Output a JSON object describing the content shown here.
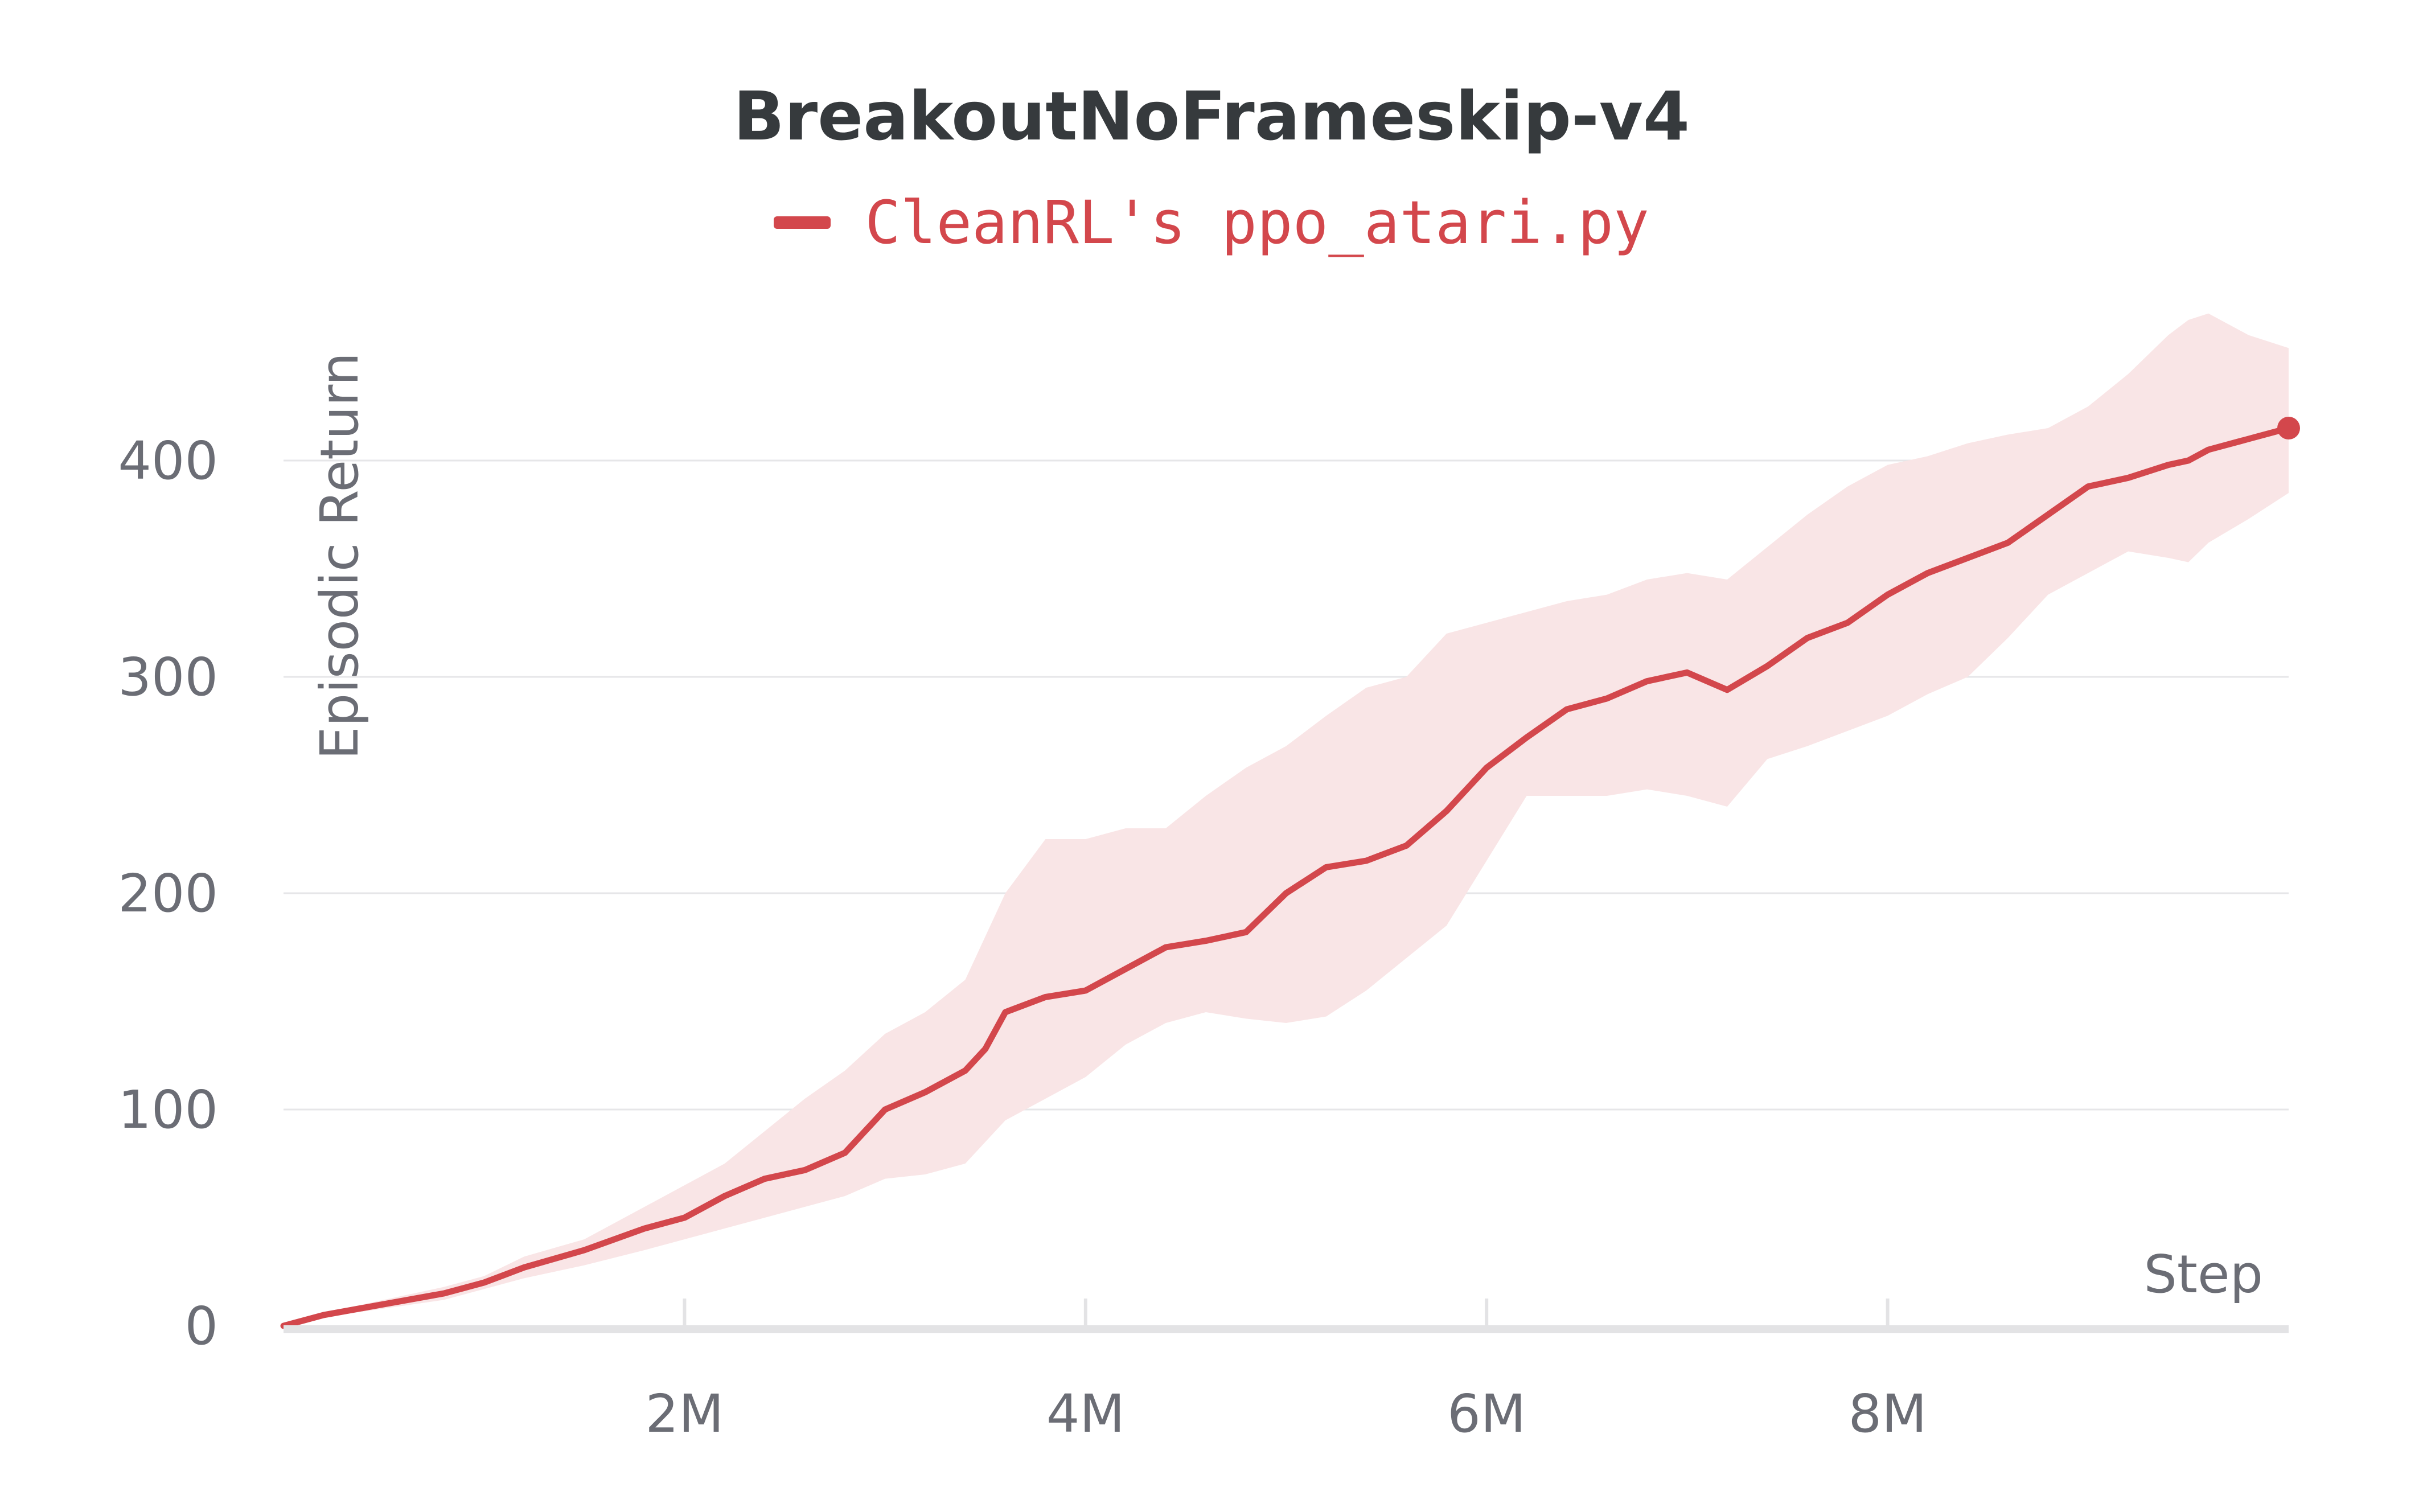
{
  "chart_data": {
    "type": "line",
    "title": "BreakoutNoFrameskip-v4",
    "xlabel": "Step",
    "ylabel": "Episodic Return",
    "xlim": [
      0,
      10000000
    ],
    "ylim": [
      0,
      450
    ],
    "x_ticks": [
      {
        "value": 2000000,
        "label": "2M"
      },
      {
        "value": 4000000,
        "label": "4M"
      },
      {
        "value": 6000000,
        "label": "6M"
      },
      {
        "value": 8000000,
        "label": "8M"
      }
    ],
    "y_ticks": [
      {
        "value": 0,
        "label": "0"
      },
      {
        "value": 100,
        "label": "100"
      },
      {
        "value": 200,
        "label": "200"
      },
      {
        "value": 300,
        "label": "300"
      },
      {
        "value": 400,
        "label": "400"
      }
    ],
    "grid": true,
    "legend": "top-center",
    "series": [
      {
        "name": "CleanRL's ppo_atari.py",
        "color": "#d3474c",
        "band_color": "#f9e5e6",
        "x": [
          0,
          200000,
          500000,
          800000,
          1000000,
          1200000,
          1500000,
          1800000,
          2000000,
          2200000,
          2400000,
          2600000,
          2800000,
          3000000,
          3200000,
          3400000,
          3500000,
          3600000,
          3800000,
          4000000,
          4200000,
          4400000,
          4600000,
          4800000,
          5000000,
          5200000,
          5400000,
          5600000,
          5800000,
          6000000,
          6200000,
          6400000,
          6600000,
          6800000,
          7000000,
          7200000,
          7400000,
          7600000,
          7800000,
          8000000,
          8200000,
          8400000,
          8600000,
          8800000,
          9000000,
          9200000,
          9400000,
          9500000,
          9600000,
          9800000,
          10000000
        ],
        "y": [
          0,
          5,
          10,
          15,
          20,
          27,
          35,
          45,
          50,
          60,
          68,
          72,
          80,
          100,
          108,
          118,
          128,
          145,
          152,
          155,
          165,
          175,
          178,
          182,
          200,
          212,
          215,
          222,
          238,
          258,
          272,
          285,
          290,
          298,
          302,
          294,
          305,
          318,
          325,
          338,
          348,
          355,
          362,
          375,
          388,
          392,
          398,
          400,
          405,
          410,
          415
        ],
        "lower": [
          0,
          4,
          8,
          12,
          17,
          22,
          28,
          35,
          40,
          45,
          50,
          55,
          60,
          68,
          70,
          75,
          85,
          95,
          105,
          115,
          130,
          140,
          145,
          142,
          140,
          143,
          155,
          170,
          185,
          215,
          245,
          245,
          245,
          248,
          245,
          240,
          262,
          268,
          275,
          282,
          292,
          300,
          318,
          338,
          348,
          358,
          355,
          353,
          362,
          373,
          385
        ],
        "upper": [
          0,
          6,
          12,
          18,
          23,
          32,
          40,
          55,
          65,
          75,
          90,
          105,
          118,
          135,
          145,
          160,
          180,
          200,
          225,
          225,
          230,
          230,
          245,
          258,
          268,
          282,
          295,
          300,
          320,
          325,
          330,
          335,
          338,
          345,
          348,
          345,
          360,
          375,
          388,
          398,
          402,
          408,
          412,
          415,
          425,
          440,
          458,
          465,
          468,
          458,
          452
        ]
      }
    ]
  }
}
